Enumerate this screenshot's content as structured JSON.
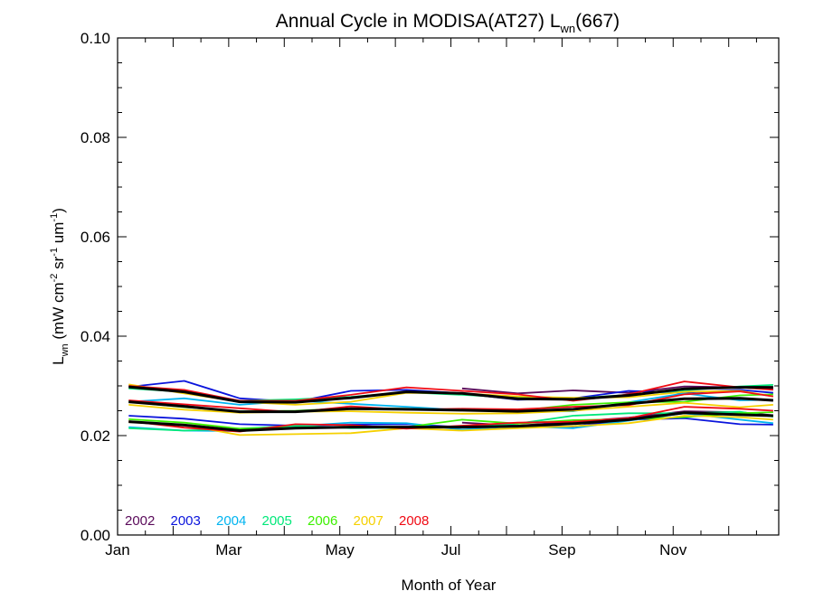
{
  "chart_data": {
    "type": "line",
    "title": {
      "main": "Annual Cycle in MODISA(AT27) L",
      "sub": "wn",
      "tail": "(667)"
    },
    "xlabel": "Month of Year",
    "ylabel": {
      "pre": "L",
      "pre_sub": "wn",
      "units_a": " (mW cm",
      "sup1": "-2",
      "units_b": " sr",
      "sup2": "-1",
      "units_c": " um",
      "sup3": "-1",
      "units_d": ")"
    },
    "xlim": [
      1,
      12.9
    ],
    "ylim": [
      0,
      0.1
    ],
    "x_ticks": [
      {
        "value": 1,
        "label": "Jan"
      },
      {
        "value": 3,
        "label": "Mar"
      },
      {
        "value": 5,
        "label": "May"
      },
      {
        "value": 7,
        "label": "Jul"
      },
      {
        "value": 9,
        "label": "Sep"
      },
      {
        "value": 11,
        "label": "Nov"
      }
    ],
    "y_ticks": [
      {
        "value": 0.0,
        "label": "0.00"
      },
      {
        "value": 0.02,
        "label": "0.02"
      },
      {
        "value": 0.04,
        "label": "0.04"
      },
      {
        "value": 0.06,
        "label": "0.06"
      },
      {
        "value": 0.08,
        "label": "0.08"
      },
      {
        "value": 0.1,
        "label": "0.10"
      }
    ],
    "x_minor_step": 0.5,
    "y_minor_step": 0.005,
    "legend_position": "bottom-left",
    "months": [
      1.2,
      2.2,
      3.2,
      4.2,
      5.2,
      6.2,
      7.2,
      8.2,
      9.2,
      10.2,
      11.2,
      12.2,
      12.8
    ],
    "series": [
      {
        "name": "2002",
        "color": "#5a0a5a",
        "lines": [
          [
            null,
            null,
            null,
            null,
            null,
            null,
            0.0295,
            0.0285,
            0.0291,
            0.0286,
            0.0299,
            0.0297,
            0.0293
          ],
          [
            null,
            null,
            null,
            null,
            null,
            null,
            0.0226,
            0.022,
            0.0228,
            0.0236,
            0.0249,
            0.0247,
            0.0241
          ]
        ]
      },
      {
        "name": "2003",
        "color": "#0a14dc",
        "lines": [
          [
            0.0298,
            0.031,
            0.0275,
            0.0268,
            0.029,
            0.0292,
            0.0285,
            0.0272,
            0.0275,
            0.029,
            0.0286,
            0.0292,
            0.0286
          ],
          [
            0.024,
            0.0234,
            0.0223,
            0.022,
            0.0222,
            0.0223,
            0.0217,
            0.022,
            0.0218,
            0.0232,
            0.0235,
            0.0223,
            0.0222
          ]
        ]
      },
      {
        "name": "2004",
        "color": "#00b4f0",
        "lines": [
          [
            0.0268,
            0.0275,
            0.0262,
            0.027,
            0.0264,
            0.0258,
            0.0251,
            0.0248,
            0.0249,
            0.0267,
            0.0285,
            0.0271,
            0.0272
          ],
          [
            0.0217,
            0.021,
            0.0209,
            0.0219,
            0.0226,
            0.0225,
            0.0212,
            0.0219,
            0.0215,
            0.023,
            0.0245,
            0.0232,
            0.0225
          ]
        ]
      },
      {
        "name": "2005",
        "color": "#00e87a",
        "lines": [
          [
            0.0295,
            0.0288,
            0.027,
            0.0273,
            0.0278,
            0.0287,
            0.0282,
            0.0276,
            0.0275,
            0.0282,
            0.0291,
            0.0299,
            0.0302
          ],
          [
            0.0215,
            0.021,
            0.0214,
            0.022,
            0.0215,
            0.0216,
            0.0217,
            0.0224,
            0.024,
            0.0245,
            0.0245,
            0.0248,
            0.0238
          ]
        ]
      },
      {
        "name": "2006",
        "color": "#3cf000",
        "lines": [
          [
            0.0268,
            0.0257,
            0.0249,
            0.025,
            0.0255,
            0.0254,
            0.0251,
            0.025,
            0.0262,
            0.0267,
            0.0268,
            0.0281,
            0.0283
          ],
          [
            0.0233,
            0.0226,
            0.0214,
            0.0216,
            0.0218,
            0.0217,
            0.0232,
            0.0224,
            0.0231,
            0.0233,
            0.0237,
            0.0245,
            0.0247
          ]
        ]
      },
      {
        "name": "2007",
        "color": "#f5d000",
        "lines": [
          [
            0.0303,
            0.0285,
            0.0268,
            0.0262,
            0.0268,
            0.0286,
            0.0285,
            0.0279,
            0.0276,
            0.0277,
            0.0288,
            0.029,
            0.0279
          ],
          [
            0.0262,
            0.0252,
            0.0246,
            0.0248,
            0.0249,
            0.0246,
            0.0244,
            0.0245,
            0.025,
            0.0258,
            0.0266,
            0.0257,
            0.0262
          ],
          [
            0.0227,
            0.0221,
            0.0201,
            0.0203,
            0.0205,
            0.0215,
            0.021,
            0.0215,
            0.0219,
            0.0225,
            0.024,
            0.0237,
            0.0232
          ]
        ]
      },
      {
        "name": "2008",
        "color": "#f00a14",
        "lines": [
          [
            0.03,
            0.0292,
            0.027,
            0.027,
            0.0282,
            0.0297,
            0.029,
            0.0283,
            0.027,
            0.0283,
            0.0309,
            0.0297,
            0.0292
          ],
          [
            0.0271,
            0.0263,
            0.0255,
            0.0247,
            0.0259,
            0.0252,
            0.0254,
            0.0253,
            0.0258,
            0.0261,
            0.0283,
            0.0289,
            0.0279
          ],
          [
            0.0229,
            0.0216,
            0.0208,
            0.0223,
            0.0221,
            0.0214,
            0.022,
            0.0226,
            0.0228,
            0.0235,
            0.0258,
            0.0254,
            0.025
          ]
        ]
      },
      {
        "name": "",
        "color": "#000000",
        "width": 3,
        "lines": [
          [
            0.0298,
            0.0288,
            0.0268,
            0.0267,
            0.0276,
            0.0288,
            0.0285,
            0.0274,
            0.0273,
            0.0281,
            0.0294,
            0.0297,
            0.0297
          ],
          [
            0.0268,
            0.0259,
            0.0248,
            0.0248,
            0.0254,
            0.0253,
            0.0251,
            0.0249,
            0.0253,
            0.0264,
            0.0274,
            0.0275,
            0.0271
          ],
          [
            0.0228,
            0.0221,
            0.021,
            0.0215,
            0.0217,
            0.0217,
            0.0217,
            0.0219,
            0.0224,
            0.0232,
            0.0246,
            0.0242,
            0.024
          ]
        ]
      }
    ]
  }
}
